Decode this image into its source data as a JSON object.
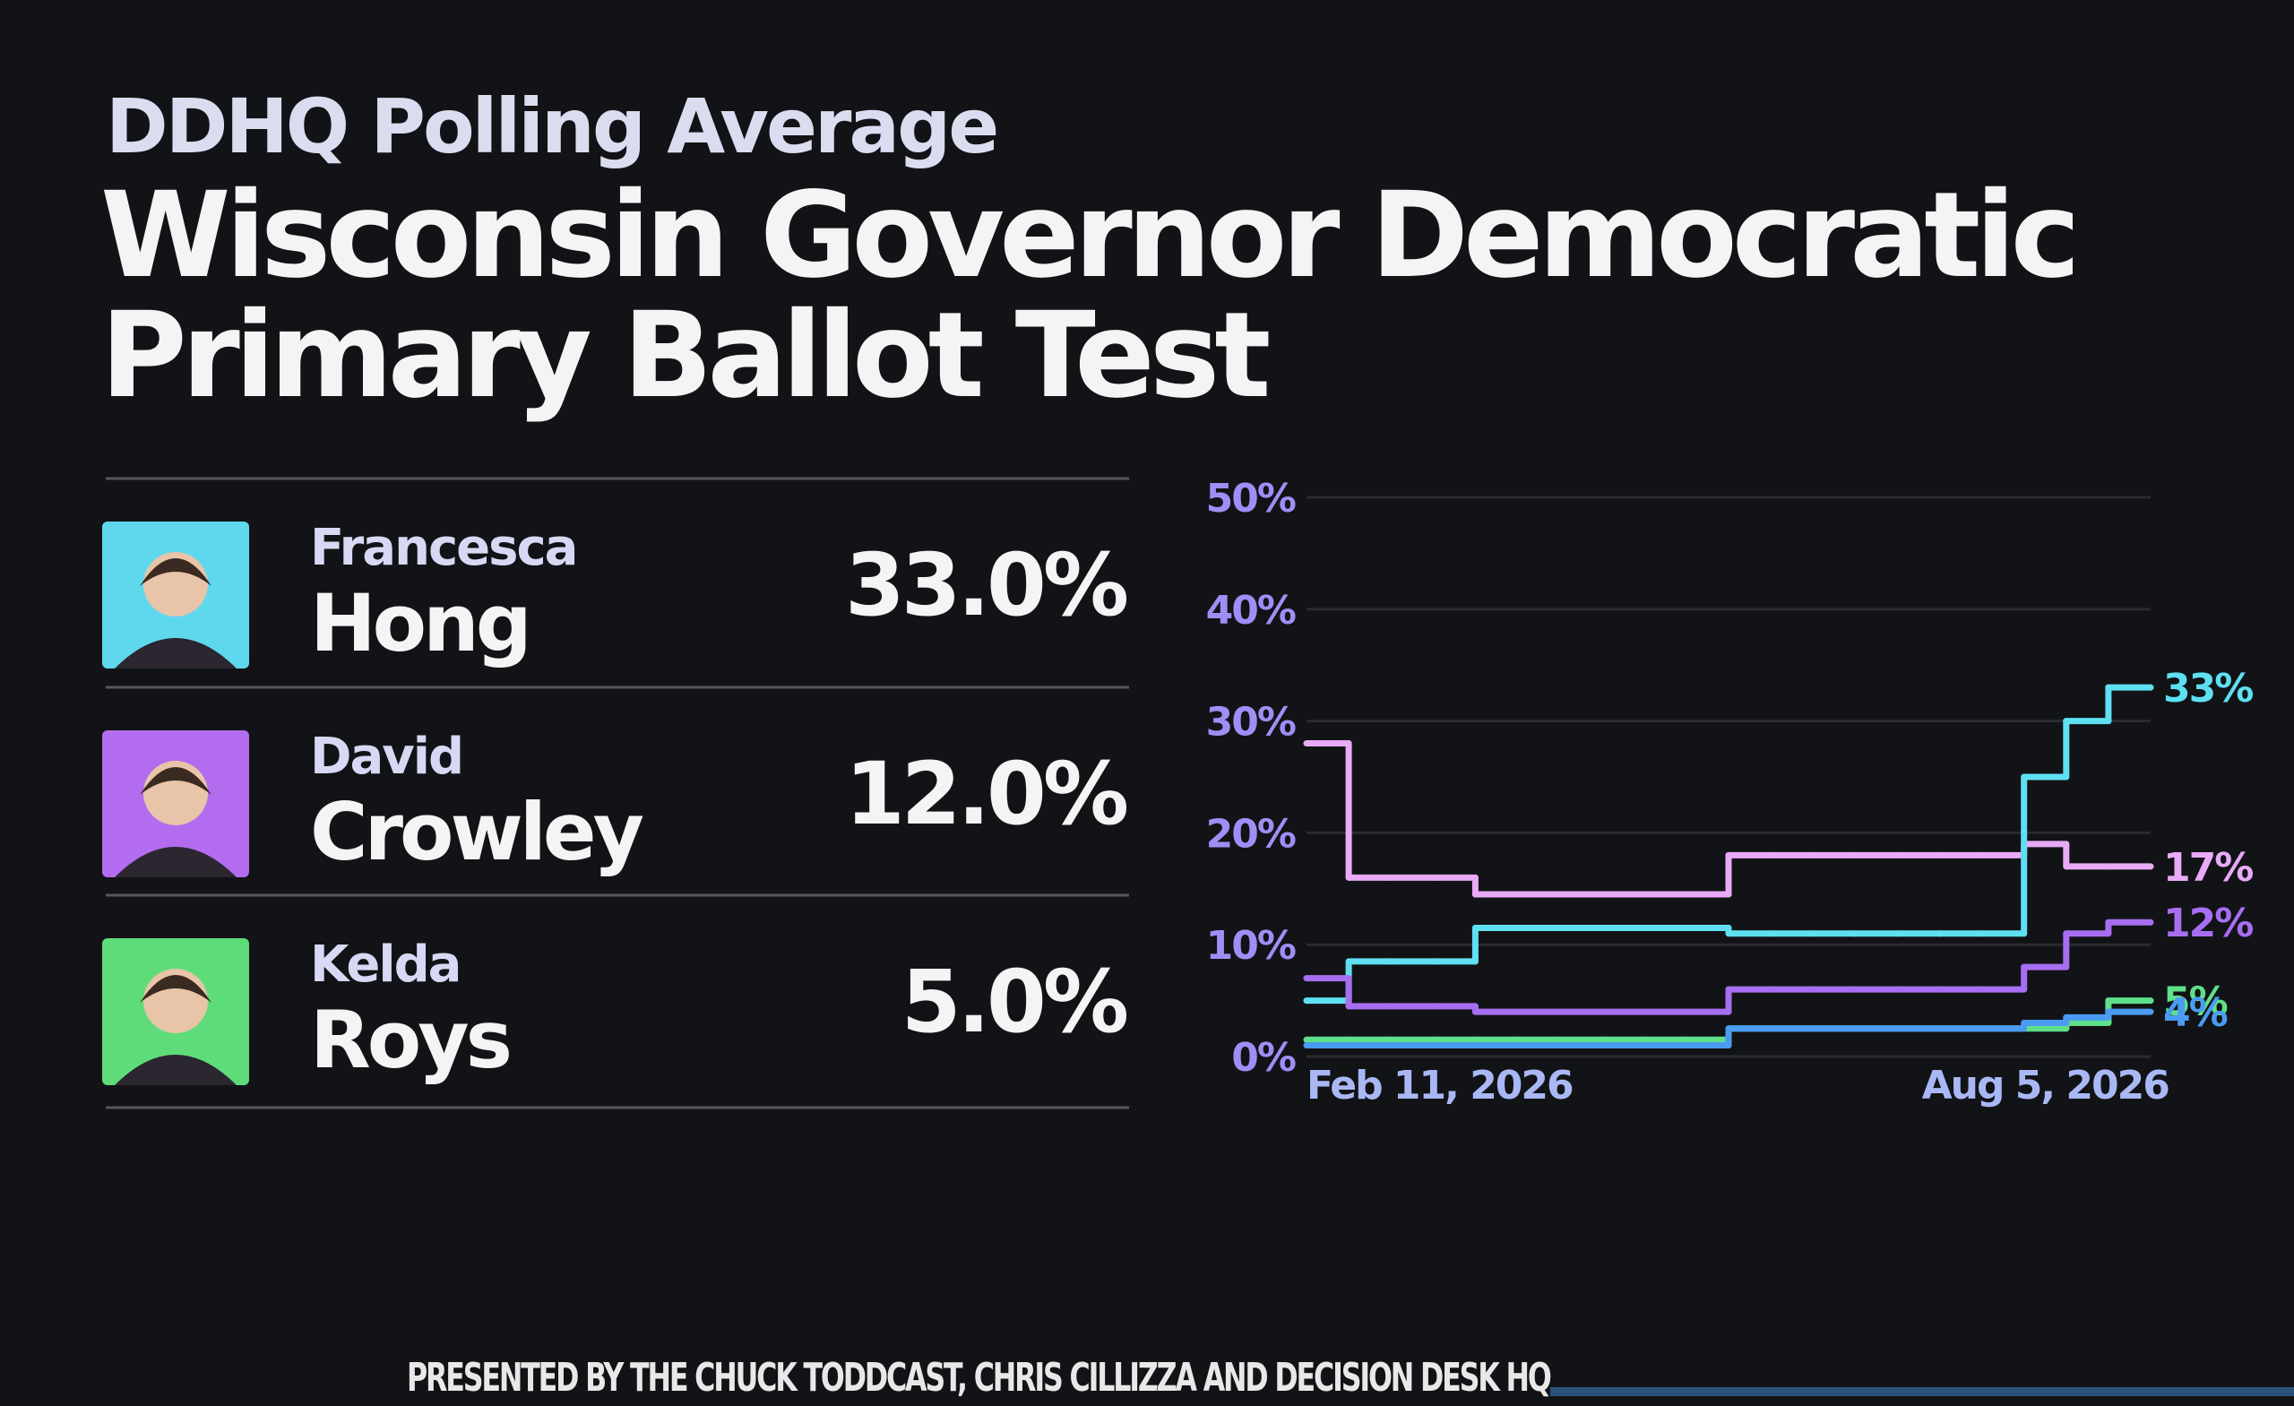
{
  "header": {
    "subtitle": "DDHQ Polling Average",
    "title_lines": [
      "Wisconsin Governor Democratic",
      "Primary Ballot Test"
    ]
  },
  "candidates": [
    {
      "first": "Francesca",
      "last": "Hong",
      "share": "33.0%",
      "color": "#5fd8ee"
    },
    {
      "first": "David",
      "last": "Crowley",
      "share": "12.0%",
      "color": "#b36cf0"
    },
    {
      "first": "Kelda",
      "last": "Roys",
      "share": "5.0%",
      "color": "#5fdc7a"
    }
  ],
  "chart_data": {
    "type": "line",
    "step": true,
    "categories": [
      "Feb 11, 2026",
      null,
      null,
      null,
      null,
      null,
      null,
      null,
      null,
      null,
      null,
      null,
      null,
      null,
      null,
      null,
      null,
      "Aug 5, 2026",
      null,
      null
    ],
    "ylim": [
      0,
      50
    ],
    "yticks": [
      {
        "value": 0,
        "label": "0%"
      },
      {
        "value": 10,
        "label": "10%"
      },
      {
        "value": 20,
        "label": "20%"
      },
      {
        "value": 30,
        "label": "30%"
      },
      {
        "value": 40,
        "label": "40%"
      },
      {
        "value": 50,
        "label": "50%"
      }
    ],
    "grid": true,
    "series": [
      {
        "color": "#e9aaf7",
        "values": [
          28,
          16,
          16,
          16,
          14.5,
          14.5,
          14.5,
          14.5,
          14.5,
          14.5,
          18,
          18,
          18,
          18,
          18,
          18,
          18,
          19,
          17,
          17
        ],
        "value_labels": [
          null,
          null,
          null,
          null,
          null,
          null,
          null,
          null,
          null,
          null,
          null,
          null,
          null,
          null,
          null,
          null,
          null,
          null,
          null,
          "17%"
        ]
      },
      {
        "color": "#5ee0f2",
        "values": [
          5,
          8.5,
          8.5,
          8.5,
          11.5,
          11.5,
          11.5,
          11.5,
          11.5,
          11.5,
          11,
          11,
          11,
          11,
          11,
          11,
          11,
          25,
          30,
          33
        ],
        "value_labels": [
          null,
          null,
          null,
          null,
          null,
          null,
          null,
          null,
          null,
          null,
          null,
          null,
          null,
          null,
          null,
          null,
          null,
          null,
          null,
          "33%"
        ]
      },
      {
        "color": "#a86ef2",
        "values": [
          7,
          4.5,
          4.5,
          4.5,
          4,
          4,
          4,
          4,
          4,
          4,
          6,
          6,
          6,
          6,
          6,
          6,
          6,
          8,
          11,
          12
        ],
        "value_labels": [
          null,
          null,
          null,
          null,
          null,
          null,
          null,
          null,
          null,
          null,
          null,
          null,
          null,
          null,
          null,
          null,
          null,
          null,
          null,
          "12%"
        ]
      },
      {
        "color": "#5fe08a",
        "values": [
          1.5,
          1.5,
          1.5,
          1.5,
          1.5,
          1.5,
          1.5,
          1.5,
          1.5,
          1.5,
          2.5,
          2.5,
          2.5,
          2.5,
          2.5,
          2.5,
          2.5,
          2.5,
          3,
          5
        ],
        "value_labels": [
          null,
          null,
          null,
          null,
          null,
          null,
          null,
          null,
          null,
          null,
          null,
          null,
          null,
          null,
          null,
          null,
          null,
          null,
          null,
          "5%"
        ]
      },
      {
        "color": "#4a9cf2",
        "values": [
          1,
          1,
          1,
          1,
          1,
          1,
          1,
          1,
          1,
          1,
          2.5,
          2.5,
          2.5,
          2.5,
          2.5,
          2.5,
          2.5,
          3,
          3.5,
          4
        ],
        "value_labels": [
          null,
          null,
          null,
          null,
          null,
          null,
          null,
          null,
          null,
          null,
          null,
          null,
          null,
          null,
          null,
          null,
          null,
          null,
          null,
          "4%"
        ]
      }
    ]
  },
  "footer": "PRESENTED BY THE CHUCK TODDCAST, CHRIS CILLIZZA AND DECISION DESK HQ"
}
